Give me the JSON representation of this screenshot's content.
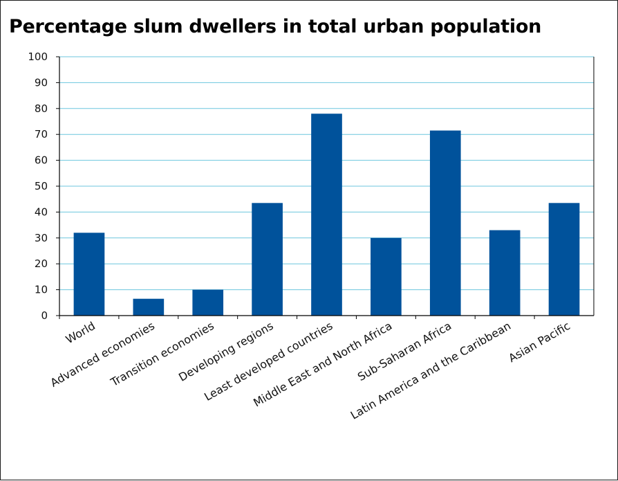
{
  "chart_data": {
    "type": "bar",
    "title": "Percentage slum dwellers in total urban population",
    "xlabel": "",
    "ylabel": "",
    "ylim": [
      0,
      100
    ],
    "yticks": [
      0,
      10,
      20,
      30,
      40,
      50,
      60,
      70,
      80,
      90,
      100
    ],
    "grid": true,
    "categories": [
      "World",
      "Advanced economies",
      "Transition economies",
      "Developing regions",
      "Least developed countries",
      "Middle East and North Africa",
      "Sub-Saharan Africa",
      "Latin America and the Caribbean",
      "Asian Pacific"
    ],
    "values": [
      32,
      6.5,
      10,
      43.5,
      78,
      30,
      71.5,
      33,
      43.5
    ],
    "colors": {
      "bar": "#00529b",
      "grid": "#6cc6de",
      "axis": "#000000"
    }
  }
}
